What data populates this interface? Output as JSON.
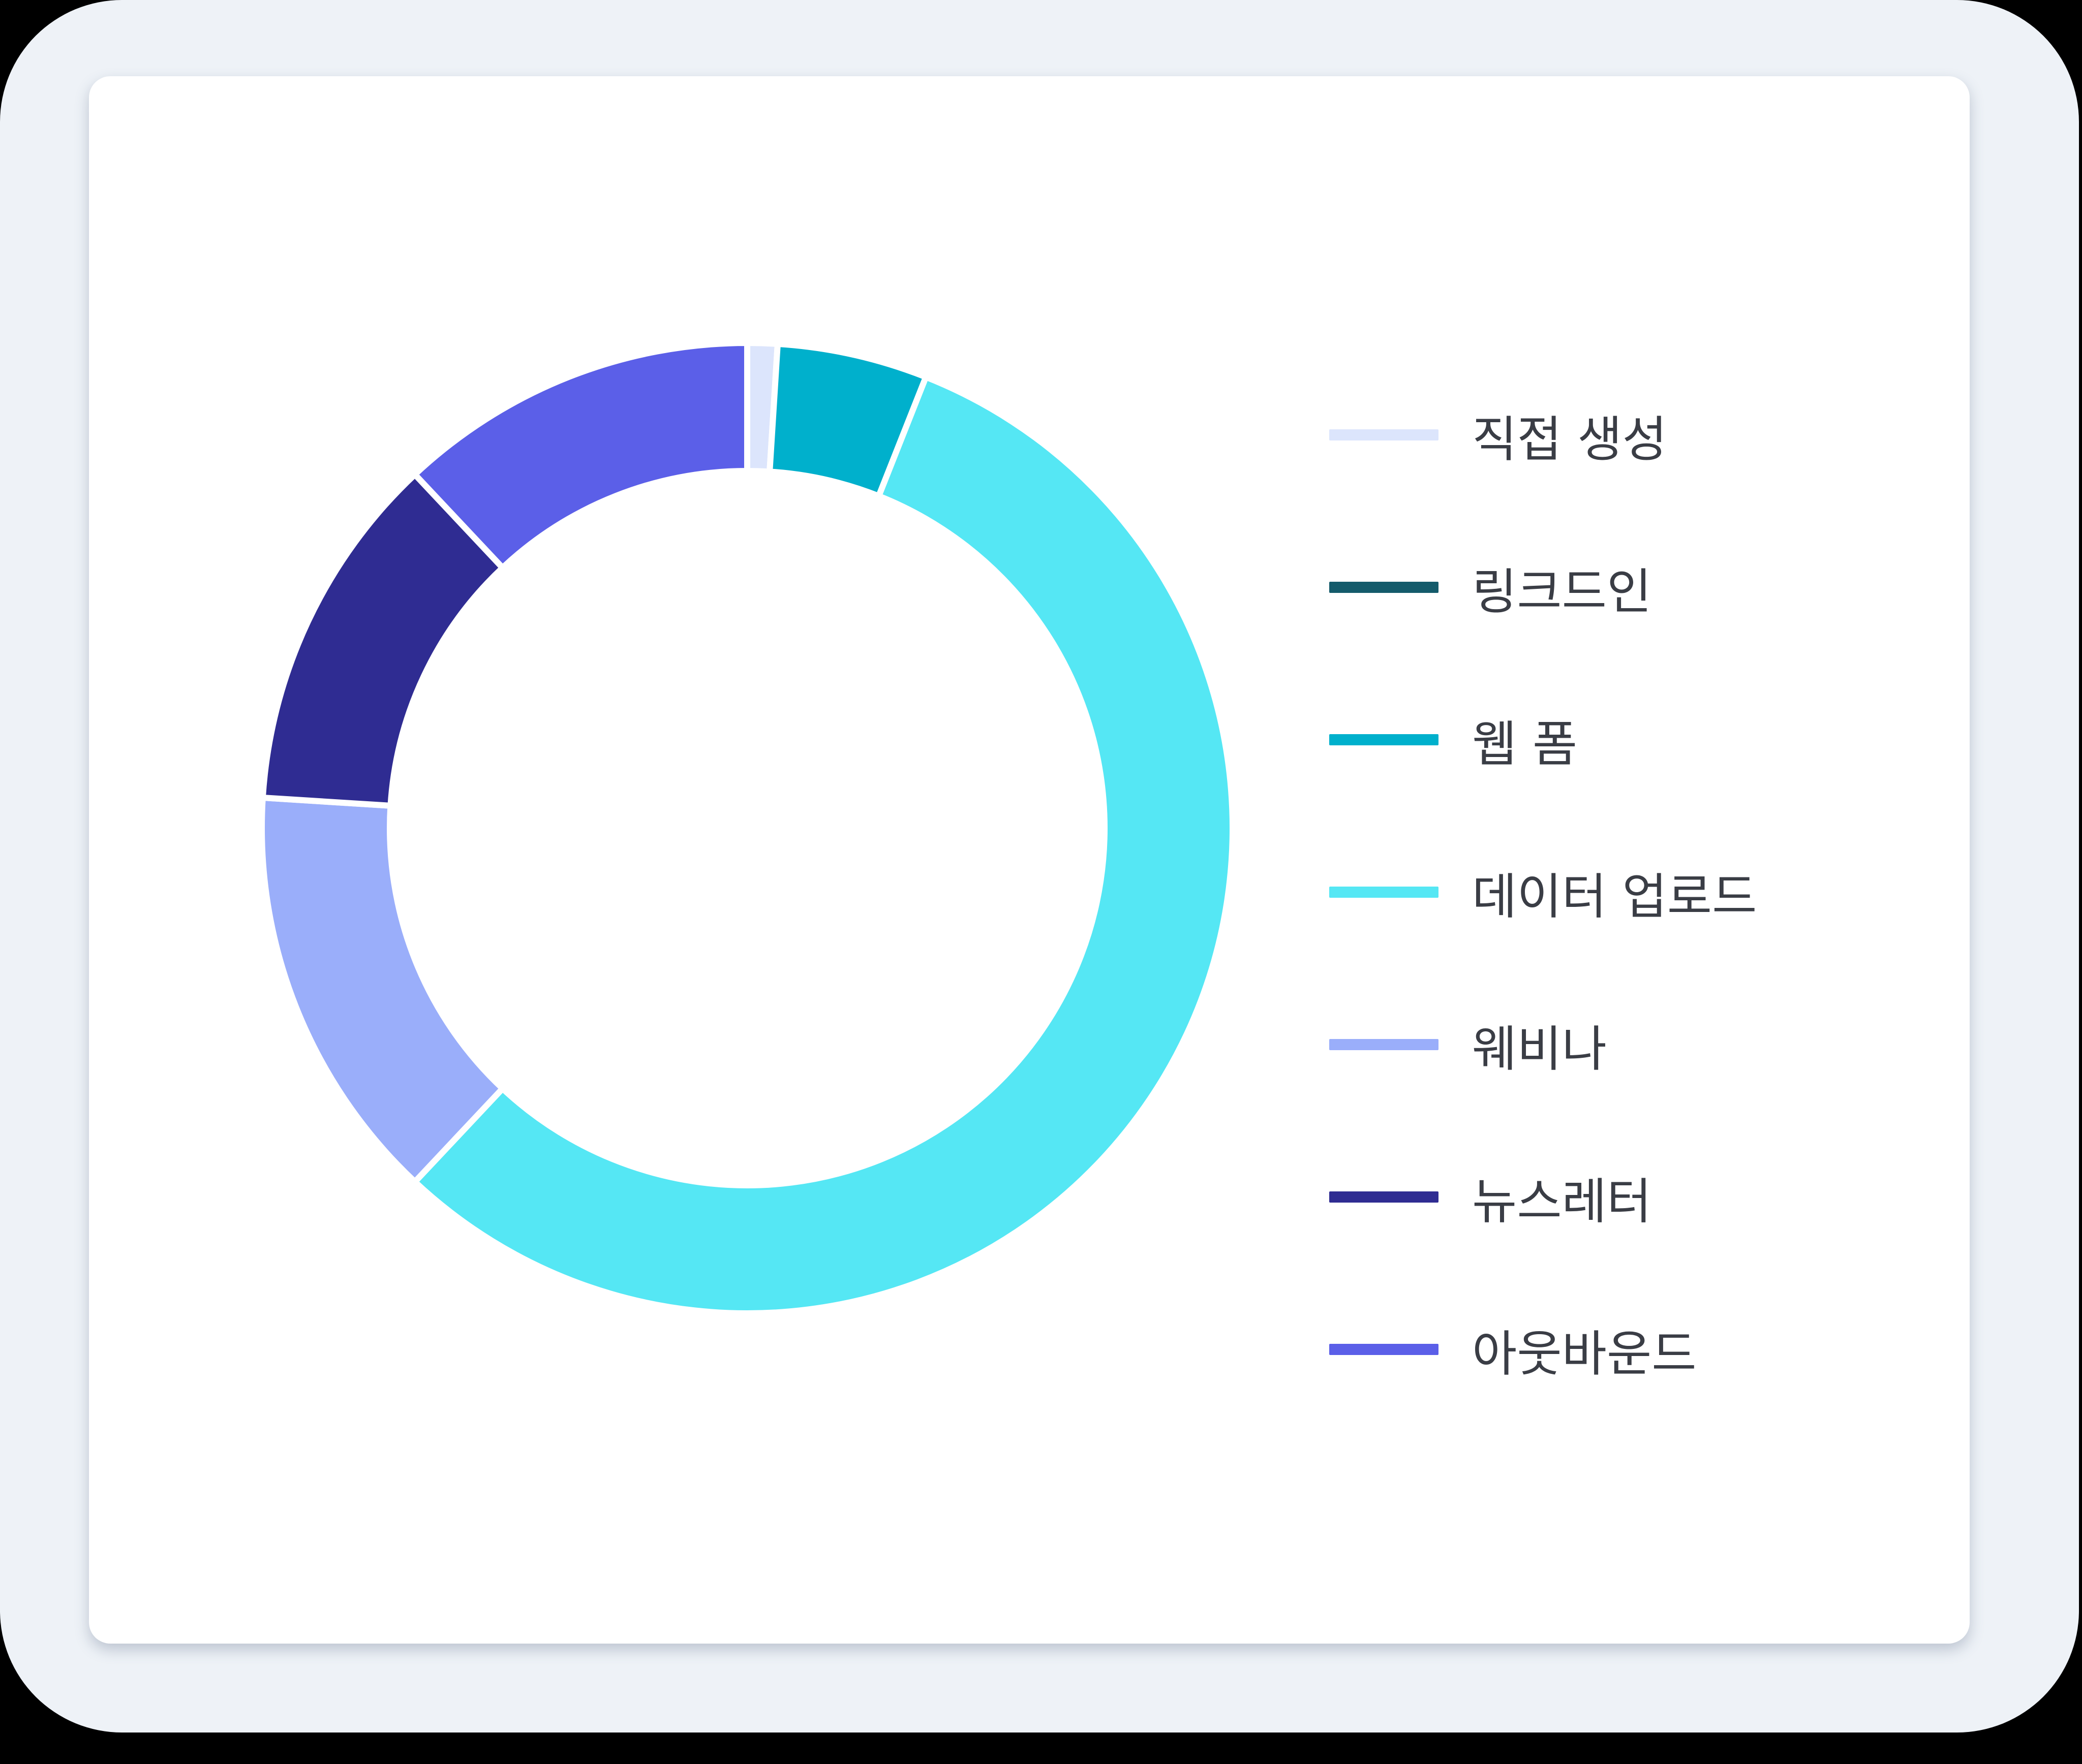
{
  "chart_data": {
    "type": "pie",
    "variant": "donut",
    "legend_position": "right",
    "series": [
      {
        "name": "직접 생성",
        "value": 1.0,
        "color": "#dce5fc"
      },
      {
        "name": "링크드인",
        "value": 0.0,
        "color": "#145b6b"
      },
      {
        "name": "웹 폼",
        "value": 5.0,
        "color": "#00b0cc"
      },
      {
        "name": "데이터 업로드",
        "value": 56.0,
        "color": "#55e7f4"
      },
      {
        "name": "웨비나",
        "value": 14.0,
        "color": "#9aaefa"
      },
      {
        "name": "뉴스레터",
        "value": 12.0,
        "color": "#2f2c92"
      },
      {
        "name": "아웃바운드",
        "value": 12.0,
        "color": "#5b5fe8"
      }
    ]
  }
}
